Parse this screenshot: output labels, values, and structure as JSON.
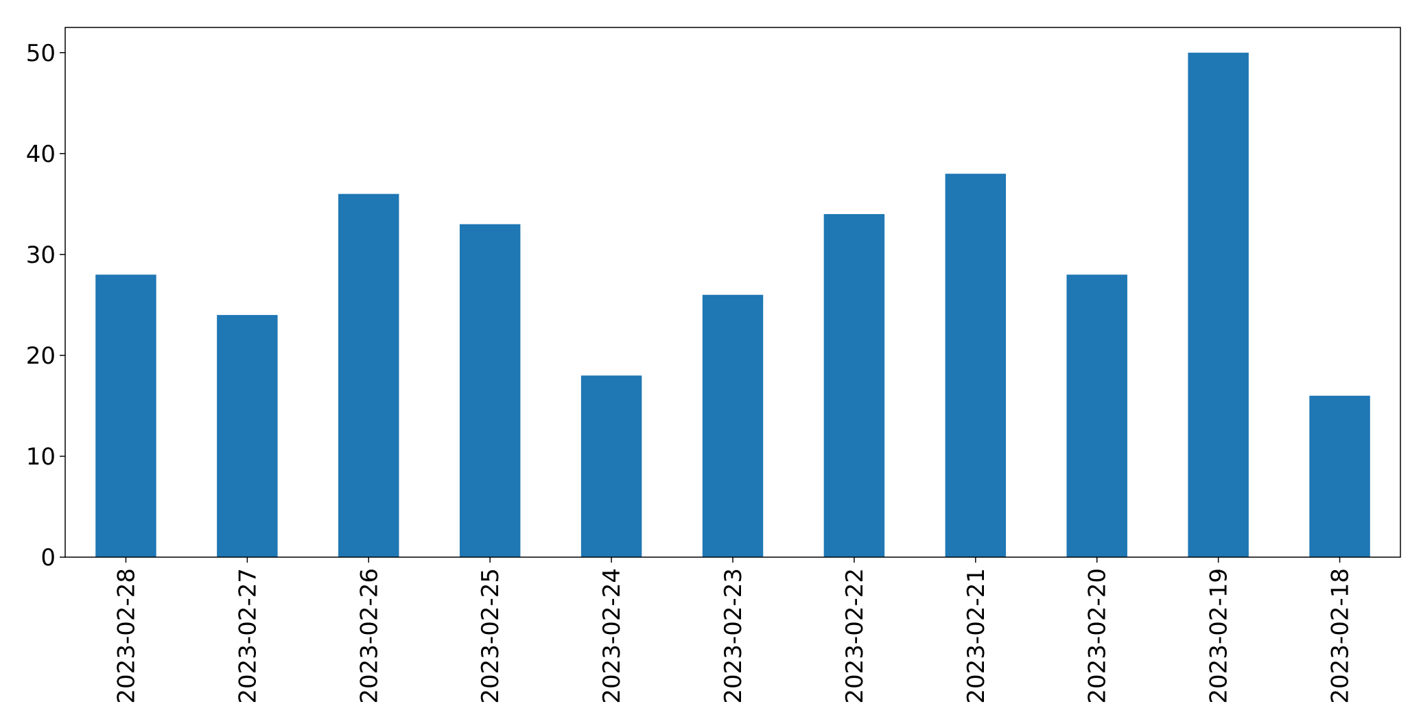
{
  "chart_data": {
    "type": "bar",
    "categories": [
      "2023-02-28",
      "2023-02-27",
      "2023-02-26",
      "2023-02-25",
      "2023-02-24",
      "2023-02-23",
      "2023-02-22",
      "2023-02-21",
      "2023-02-20",
      "2023-02-19",
      "2023-02-18"
    ],
    "values": [
      28,
      24,
      36,
      33,
      18,
      26,
      34,
      38,
      28,
      50,
      16
    ],
    "title": "",
    "xlabel": "",
    "ylabel": "",
    "ylim": [
      0,
      52.5
    ],
    "yticks": [
      0,
      10,
      20,
      30,
      40,
      50
    ],
    "grid": false,
    "bar_color": "#1f77b4",
    "x_tick_rotation": "vertical"
  }
}
